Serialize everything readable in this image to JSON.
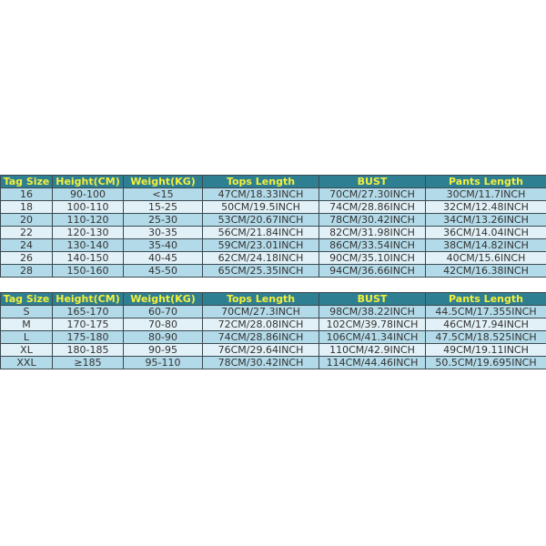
{
  "headers": [
    "Tag Size",
    "Height(CM)",
    "Weight(KG)",
    "Tops Length",
    "BUST",
    "Pants Length"
  ],
  "kids_rows": [
    [
      "16",
      "90-100",
      "<15",
      "47CM/18.33INCH",
      "70CM/27.30INCH",
      "30CM/11.7INCH"
    ],
    [
      "18",
      "100-110",
      "15-25",
      "50CM/19.5INCH",
      "74CM/28.86INCH",
      "32CM/12.48INCH"
    ],
    [
      "20",
      "110-120",
      "25-30",
      "53CM/20.67INCH",
      "78CM/30.42INCH",
      "34CM/13.26INCH"
    ],
    [
      "22",
      "120-130",
      "30-35",
      "56CM/21.84INCH",
      "82CM/31.98INCH",
      "36CM/14.04INCH"
    ],
    [
      "24",
      "130-140",
      "35-40",
      "59CM/23.01INCH",
      "86CM/33.54INCH",
      "38CM/14.82INCH"
    ],
    [
      "26",
      "140-150",
      "40-45",
      "62CM/24.18INCH",
      "90CM/35.10INCH",
      "40CM/15.6INCH"
    ],
    [
      "28",
      "150-160",
      "45-50",
      "65CM/25.35INCH",
      "94CM/36.66INCH",
      "42CM/16.38INCH"
    ]
  ],
  "adult_rows": [
    [
      "S",
      "165-170",
      "60-70",
      "70CM/27.3INCH",
      "98CM/38.22INCH",
      "44.5CM/17.355INCH"
    ],
    [
      "M",
      "170-175",
      "70-80",
      "72CM/28.08INCH",
      "102CM/39.78INCH",
      "46CM/17.94INCH"
    ],
    [
      "L",
      "175-180",
      "80-90",
      "74CM/28.86INCH",
      "106CM/41.34INCH",
      "47.5CM/18.525INCH"
    ],
    [
      "XL",
      "180-185",
      "90-95",
      "76CM/29.64INCH",
      "110CM/42.9INCH",
      "49CM/19.11INCH"
    ],
    [
      "XXL",
      "≥185",
      "95-110",
      "78CM/30.42INCH",
      "114CM/44.46INCH",
      "50.5CM/19.695INCH"
    ]
  ],
  "colors": {
    "header_bg": "#2f7f92",
    "header_text": "#f4f03a",
    "row_dark": "#b3dae8",
    "row_light": "#e2f1f7"
  }
}
